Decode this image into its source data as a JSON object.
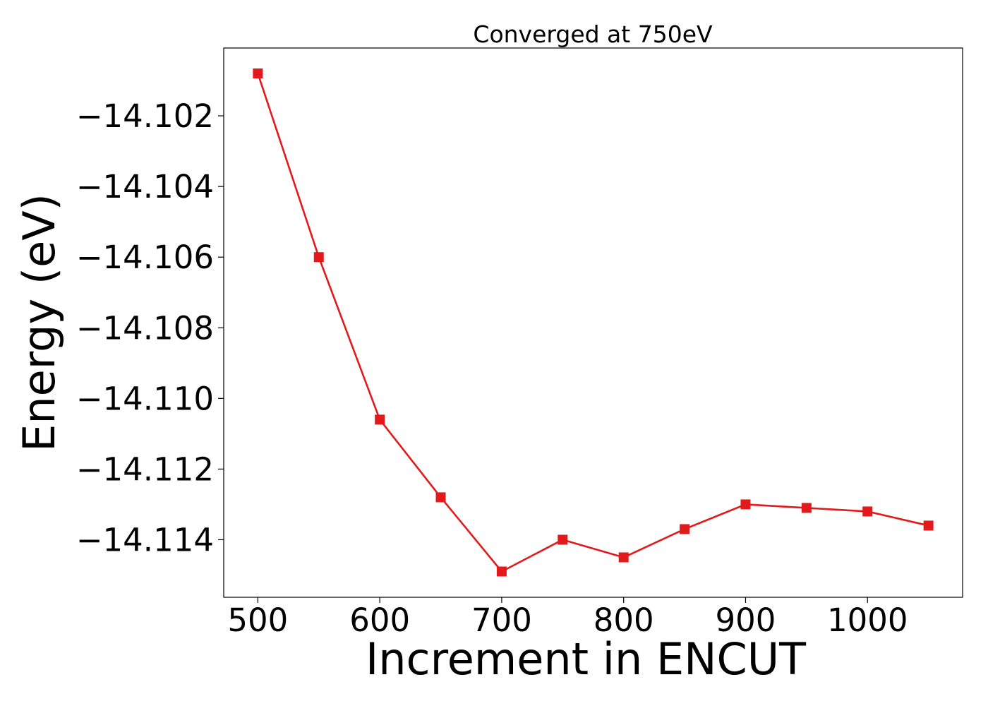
{
  "chart_data": {
    "type": "line",
    "title": "Converged at 750eV",
    "xlabel": "Increment in ENCUT",
    "ylabel": "Energy (eV)",
    "x": [
      500,
      550,
      600,
      650,
      700,
      750,
      800,
      850,
      900,
      950,
      1000,
      1050
    ],
    "series": [
      {
        "values": [
          -14.1008,
          -14.106,
          -14.1106,
          -14.1128,
          -14.1149,
          -14.114,
          -14.1145,
          -14.1137,
          -14.113,
          -14.1131,
          -14.1132,
          -14.1136
        ],
        "color": "#e31a1c",
        "marker": "square"
      }
    ],
    "xlim": [
      472,
      1078
    ],
    "ylim": [
      -14.11563,
      -14.10008
    ],
    "xticks": [
      500,
      600,
      700,
      800,
      900,
      1000
    ],
    "yticks": [
      -14.102,
      -14.104,
      -14.106,
      -14.108,
      -14.11,
      -14.112,
      -14.114
    ],
    "xtick_labels": [
      "500",
      "600",
      "700",
      "800",
      "900",
      "1000"
    ],
    "ytick_labels": [
      "−14.102",
      "−14.104",
      "−14.106",
      "−14.108",
      "−14.110",
      "−14.112",
      "−14.114"
    ],
    "grid": false,
    "legend": "none"
  }
}
